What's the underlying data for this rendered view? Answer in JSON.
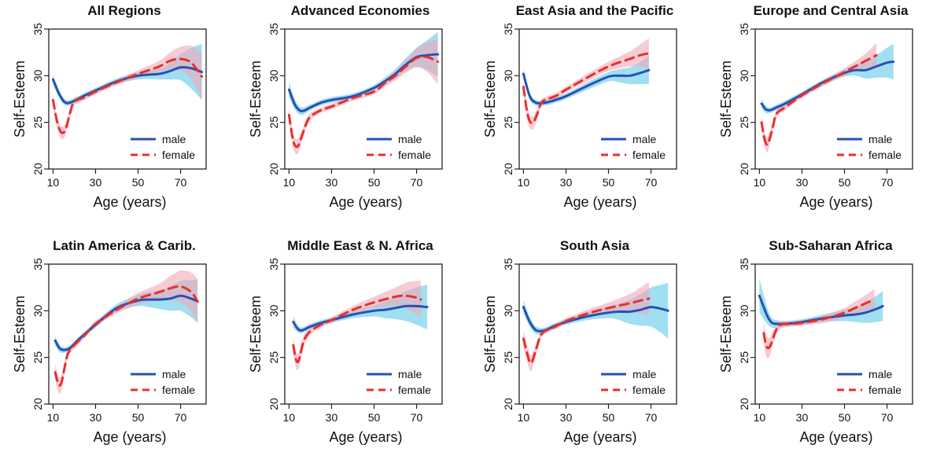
{
  "figure": {
    "xlabel": "Age (years)",
    "ylabel": "Self-Esteem",
    "legend_male": "male",
    "legend_female": "female",
    "colors": {
      "male": "#2850b4",
      "female": "#e8302a",
      "male_band": "#7fd4ec",
      "female_band": "#f2a8b8"
    }
  },
  "chart_data": [
    {
      "type": "line",
      "title": "All Regions",
      "xlim": [
        8,
        82
      ],
      "ylim": [
        20,
        35
      ],
      "xticks": [
        10,
        30,
        50,
        70
      ],
      "yticks": [
        20,
        25,
        30,
        35
      ],
      "legend": "bottom-right",
      "series": [
        {
          "name": "male",
          "x": [
            10,
            13,
            16,
            20,
            25,
            30,
            40,
            50,
            60,
            65,
            70,
            75,
            80
          ],
          "y": [
            29.6,
            28.0,
            27.1,
            27.3,
            27.9,
            28.4,
            29.4,
            30.0,
            30.2,
            30.5,
            30.9,
            30.8,
            30.4
          ],
          "band": [
            0.5,
            0.4,
            0.3,
            0.3,
            0.3,
            0.3,
            0.3,
            0.4,
            0.6,
            0.9,
            1.4,
            2.2,
            3.0
          ]
        },
        {
          "name": "female",
          "x": [
            10,
            12,
            14,
            16,
            18,
            20,
            25,
            30,
            40,
            50,
            60,
            65,
            70,
            75,
            80
          ],
          "y": [
            27.4,
            25.0,
            23.9,
            24.3,
            26.0,
            27.2,
            27.7,
            28.3,
            29.3,
            30.2,
            31.0,
            31.6,
            31.8,
            31.4,
            29.9
          ],
          "band": [
            0.5,
            0.6,
            0.7,
            0.6,
            0.5,
            0.4,
            0.3,
            0.3,
            0.3,
            0.4,
            0.6,
            0.9,
            1.3,
            1.8,
            2.4
          ]
        }
      ]
    },
    {
      "type": "line",
      "title": "Advanced Economies",
      "xlim": [
        8,
        82
      ],
      "ylim": [
        20,
        35
      ],
      "xticks": [
        10,
        30,
        50,
        70
      ],
      "yticks": [
        20,
        25,
        30,
        35
      ],
      "legend": "bottom-right",
      "series": [
        {
          "name": "male",
          "x": [
            10,
            13,
            16,
            20,
            25,
            30,
            40,
            50,
            55,
            60,
            65,
            70,
            75,
            80
          ],
          "y": [
            28.5,
            26.8,
            26.2,
            26.6,
            27.1,
            27.4,
            27.8,
            28.7,
            29.4,
            30.2,
            31.2,
            32.0,
            32.2,
            32.3
          ],
          "band": [
            0.8,
            0.5,
            0.4,
            0.3,
            0.3,
            0.3,
            0.3,
            0.3,
            0.4,
            0.5,
            0.7,
            1.0,
            1.6,
            2.4
          ]
        },
        {
          "name": "female",
          "x": [
            10,
            12,
            14,
            16,
            18,
            20,
            25,
            30,
            40,
            50,
            55,
            60,
            65,
            70,
            75,
            80
          ],
          "y": [
            25.8,
            23.0,
            22.4,
            23.5,
            24.8,
            25.6,
            26.3,
            26.7,
            27.6,
            28.3,
            29.2,
            30.0,
            31.0,
            31.9,
            32.0,
            31.5
          ],
          "band": [
            0.8,
            0.8,
            0.8,
            0.6,
            0.5,
            0.4,
            0.3,
            0.3,
            0.3,
            0.3,
            0.4,
            0.5,
            0.7,
            1.0,
            1.6,
            2.4
          ]
        }
      ]
    },
    {
      "type": "line",
      "title": "East Asia and the Pacific",
      "xlim": [
        8,
        82
      ],
      "ylim": [
        20,
        35
      ],
      "xticks": [
        10,
        30,
        50,
        70
      ],
      "yticks": [
        20,
        25,
        30,
        35
      ],
      "legend": "bottom-right",
      "series": [
        {
          "name": "male",
          "x": [
            10,
            13,
            16,
            20,
            25,
            30,
            40,
            50,
            55,
            60,
            65,
            69
          ],
          "y": [
            30.2,
            27.8,
            27.1,
            27.1,
            27.4,
            27.8,
            28.9,
            29.9,
            30.0,
            30.0,
            30.3,
            30.6
          ],
          "band": [
            0.6,
            0.4,
            0.3,
            0.3,
            0.3,
            0.3,
            0.4,
            0.5,
            0.7,
            0.9,
            1.2,
            1.5
          ]
        },
        {
          "name": "female",
          "x": [
            10,
            12,
            14,
            16,
            18,
            20,
            25,
            30,
            40,
            50,
            60,
            65,
            69
          ],
          "y": [
            28.8,
            25.8,
            24.9,
            25.6,
            26.9,
            27.4,
            27.8,
            28.5,
            29.8,
            31.0,
            31.8,
            32.2,
            32.4
          ],
          "band": [
            0.7,
            0.7,
            0.7,
            0.6,
            0.4,
            0.3,
            0.3,
            0.3,
            0.4,
            0.5,
            0.8,
            1.2,
            1.6
          ]
        }
      ]
    },
    {
      "type": "line",
      "title": "Europe and Central Asia",
      "xlim": [
        8,
        82
      ],
      "ylim": [
        20,
        35
      ],
      "xticks": [
        10,
        30,
        50,
        70
      ],
      "yticks": [
        20,
        25,
        30,
        35
      ],
      "legend": "bottom-right",
      "series": [
        {
          "name": "male",
          "x": [
            11,
            13,
            15,
            18,
            22,
            30,
            40,
            50,
            55,
            60,
            65,
            70,
            73
          ],
          "y": [
            27.0,
            26.4,
            26.3,
            26.6,
            27.0,
            28.0,
            29.3,
            30.3,
            30.6,
            30.6,
            31.0,
            31.4,
            31.5
          ],
          "band": [
            0.5,
            0.4,
            0.3,
            0.3,
            0.3,
            0.3,
            0.3,
            0.4,
            0.6,
            0.9,
            1.2,
            1.6,
            1.9
          ]
        },
        {
          "name": "female",
          "x": [
            11,
            12,
            13,
            14,
            16,
            18,
            22,
            30,
            40,
            50,
            60,
            65
          ],
          "y": [
            25.0,
            23.6,
            22.8,
            22.7,
            24.2,
            25.9,
            26.6,
            27.9,
            29.2,
            30.4,
            31.6,
            32.2
          ],
          "band": [
            0.7,
            0.8,
            0.8,
            0.8,
            0.6,
            0.4,
            0.3,
            0.3,
            0.3,
            0.4,
            0.8,
            1.3
          ]
        }
      ]
    },
    {
      "type": "line",
      "title": "Latin America & Carib.",
      "xlim": [
        8,
        82
      ],
      "ylim": [
        20,
        35
      ],
      "xticks": [
        10,
        30,
        50,
        70
      ],
      "yticks": [
        20,
        25,
        30,
        35
      ],
      "legend": "bottom-right",
      "series": [
        {
          "name": "male",
          "x": [
            11,
            13,
            15,
            18,
            22,
            30,
            40,
            50,
            55,
            60,
            65,
            70,
            75,
            78
          ],
          "y": [
            26.8,
            26.0,
            25.8,
            26.0,
            26.9,
            28.5,
            30.3,
            31.1,
            31.2,
            31.2,
            31.3,
            31.6,
            31.3,
            31.0
          ],
          "band": [
            0.5,
            0.4,
            0.3,
            0.3,
            0.3,
            0.3,
            0.4,
            0.6,
            0.8,
            1.0,
            1.3,
            1.6,
            2.0,
            2.3
          ]
        },
        {
          "name": "female",
          "x": [
            11,
            12,
            13,
            14,
            15,
            17,
            20,
            25,
            30,
            40,
            50,
            60,
            65,
            70,
            75,
            78
          ],
          "y": [
            23.4,
            22.5,
            22.0,
            22.3,
            23.4,
            25.4,
            26.3,
            27.4,
            28.6,
            30.1,
            31.3,
            32.0,
            32.4,
            32.6,
            32.0,
            31.0
          ],
          "band": [
            0.9,
            0.9,
            0.9,
            0.8,
            0.7,
            0.5,
            0.4,
            0.3,
            0.3,
            0.4,
            0.6,
            0.9,
            1.3,
            1.7,
            2.1,
            2.4
          ]
        }
      ]
    },
    {
      "type": "line",
      "title": "Middle East & N. Africa",
      "xlim": [
        8,
        82
      ],
      "ylim": [
        20,
        35
      ],
      "xticks": [
        10,
        30,
        50,
        70
      ],
      "yticks": [
        20,
        25,
        30,
        35
      ],
      "legend": "bottom-right",
      "series": [
        {
          "name": "male",
          "x": [
            12,
            14,
            16,
            20,
            25,
            30,
            40,
            50,
            55,
            60,
            65,
            70,
            75
          ],
          "y": [
            28.8,
            28.1,
            27.9,
            28.3,
            28.7,
            29.0,
            29.6,
            30.0,
            30.1,
            30.3,
            30.5,
            30.5,
            30.4
          ],
          "band": [
            0.6,
            0.4,
            0.3,
            0.3,
            0.3,
            0.3,
            0.4,
            0.6,
            0.9,
            1.2,
            1.6,
            2.0,
            2.4
          ]
        },
        {
          "name": "female",
          "x": [
            12,
            13,
            14,
            15,
            17,
            20,
            25,
            30,
            40,
            50,
            60,
            65,
            70,
            72
          ],
          "y": [
            26.3,
            25.0,
            24.5,
            25.0,
            26.8,
            27.8,
            28.5,
            29.0,
            30.1,
            30.9,
            31.5,
            31.6,
            31.4,
            31.2
          ],
          "band": [
            0.9,
            0.9,
            0.9,
            0.8,
            0.6,
            0.4,
            0.3,
            0.3,
            0.4,
            0.6,
            1.0,
            1.4,
            1.8,
            2.0
          ]
        }
      ]
    },
    {
      "type": "line",
      "title": "South Asia",
      "xlim": [
        8,
        82
      ],
      "ylim": [
        20,
        35
      ],
      "xticks": [
        10,
        30,
        50,
        70
      ],
      "yticks": [
        20,
        25,
        30,
        35
      ],
      "legend": "bottom-right",
      "series": [
        {
          "name": "male",
          "x": [
            10,
            13,
            16,
            20,
            25,
            30,
            40,
            50,
            55,
            60,
            65,
            70,
            75,
            78
          ],
          "y": [
            30.4,
            28.8,
            27.9,
            27.9,
            28.4,
            28.8,
            29.4,
            29.8,
            29.9,
            29.9,
            30.1,
            30.4,
            30.2,
            30.0
          ],
          "band": [
            0.7,
            0.5,
            0.4,
            0.3,
            0.3,
            0.3,
            0.4,
            0.6,
            0.9,
            1.3,
            1.7,
            2.1,
            2.6,
            3.0
          ]
        },
        {
          "name": "female",
          "x": [
            10,
            12,
            13,
            14,
            16,
            18,
            20,
            25,
            30,
            40,
            50,
            60,
            65,
            69
          ],
          "y": [
            27.0,
            25.2,
            24.5,
            24.5,
            25.9,
            27.3,
            27.8,
            28.3,
            28.9,
            29.7,
            30.3,
            30.8,
            31.1,
            31.3
          ],
          "band": [
            0.9,
            0.9,
            0.9,
            0.8,
            0.6,
            0.4,
            0.3,
            0.3,
            0.3,
            0.4,
            0.6,
            1.0,
            1.4,
            1.8
          ]
        }
      ]
    },
    {
      "type": "line",
      "title": "Sub-Saharan Africa",
      "xlim": [
        8,
        82
      ],
      "ylim": [
        20,
        35
      ],
      "xticks": [
        10,
        30,
        50,
        70
      ],
      "yticks": [
        20,
        25,
        30,
        35
      ],
      "legend": "bottom-right",
      "series": [
        {
          "name": "male",
          "x": [
            10,
            12,
            14,
            16,
            18,
            22,
            30,
            40,
            50,
            55,
            60,
            65,
            68
          ],
          "y": [
            31.6,
            30.4,
            29.3,
            28.7,
            28.6,
            28.6,
            28.8,
            29.2,
            29.5,
            29.6,
            29.8,
            30.2,
            30.5
          ],
          "band": [
            1.8,
            1.3,
            0.8,
            0.5,
            0.4,
            0.3,
            0.3,
            0.4,
            0.6,
            0.8,
            1.1,
            1.4,
            1.6
          ]
        },
        {
          "name": "female",
          "x": [
            12,
            13,
            14,
            15,
            16,
            18,
            20,
            25,
            30,
            40,
            50,
            55,
            60,
            64
          ],
          "y": [
            27.6,
            26.4,
            26.0,
            26.2,
            26.8,
            28.0,
            28.5,
            28.6,
            28.7,
            29.1,
            29.8,
            30.3,
            30.8,
            31.2
          ],
          "band": [
            1.2,
            1.2,
            1.1,
            1.0,
            0.8,
            0.5,
            0.4,
            0.3,
            0.3,
            0.4,
            0.5,
            0.7,
            0.9,
            1.1
          ]
        }
      ]
    }
  ]
}
